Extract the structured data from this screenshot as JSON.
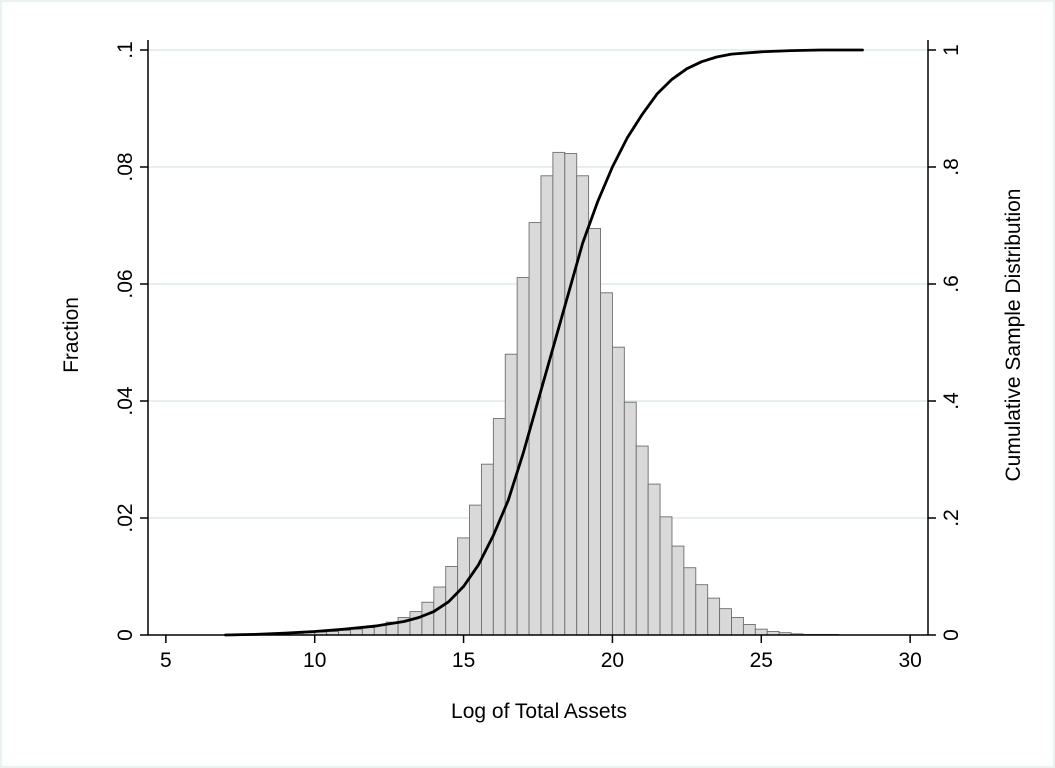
{
  "chart_data": {
    "type": "bar",
    "title": "",
    "xlabel": "Log of Total Assets",
    "ylabel": "Fraction",
    "y2label": "Cumulative Sample Distribution",
    "xlim": [
      4.4,
      30.6
    ],
    "ylim": [
      0,
      0.1
    ],
    "y2lim": [
      0,
      1
    ],
    "x_ticks": [
      5,
      10,
      15,
      20,
      25,
      30
    ],
    "y_ticks": [
      0,
      0.02,
      0.04,
      0.06,
      0.08,
      0.1
    ],
    "y_tick_labels": [
      "0",
      ".02",
      ".04",
      ".06",
      ".08",
      ".1"
    ],
    "y2_ticks": [
      0,
      0.2,
      0.4,
      0.6,
      0.8,
      1
    ],
    "y2_tick_labels": [
      "0",
      ".2",
      ".4",
      ".6",
      ".8",
      "1"
    ],
    "grid": true,
    "colors": {
      "bar_fill": "#d9d9d9",
      "bar_stroke": "#6e6e6e",
      "line": "#000000",
      "grid": "#dfe9ec",
      "frame": "#eaf2f3"
    },
    "histogram": {
      "bin_width": 0.4,
      "bin_starts": [
        7.6,
        8.0,
        8.4,
        8.8,
        9.2,
        9.6,
        10.0,
        10.4,
        10.8,
        11.2,
        11.6,
        12.0,
        12.4,
        12.8,
        13.2,
        13.6,
        14.0,
        14.4,
        14.8,
        15.2,
        15.6,
        16.0,
        16.4,
        16.8,
        17.2,
        17.6,
        18.0,
        18.4,
        18.8,
        19.2,
        19.6,
        20.0,
        20.4,
        20.8,
        21.2,
        21.6,
        22.0,
        22.4,
        22.8,
        23.2,
        23.6,
        24.0,
        24.4,
        24.8,
        25.2,
        25.6,
        26.0,
        26.4,
        26.8,
        27.2
      ],
      "values": [
        0.0001,
        0.0001,
        0.0001,
        0.0002,
        0.0003,
        0.0004,
        0.0005,
        0.0006,
        0.0008,
        0.001,
        0.0013,
        0.0017,
        0.0022,
        0.003,
        0.004,
        0.0056,
        0.0082,
        0.0117,
        0.0166,
        0.0222,
        0.0292,
        0.037,
        0.048,
        0.0611,
        0.0705,
        0.0785,
        0.0825,
        0.0823,
        0.0785,
        0.0695,
        0.0585,
        0.0492,
        0.0398,
        0.0323,
        0.0258,
        0.0202,
        0.0152,
        0.0115,
        0.0086,
        0.0063,
        0.0045,
        0.003,
        0.0018,
        0.001,
        0.0006,
        0.0004,
        0.0002,
        0.0001,
        0.0001,
        0.0001
      ]
    },
    "series": [
      {
        "type": "line",
        "axis": "right",
        "x": [
          7,
          8,
          9,
          10,
          11,
          12,
          13,
          13.5,
          14,
          14.5,
          15,
          15.5,
          16,
          16.5,
          17,
          17.5,
          18,
          18.5,
          19,
          19.5,
          20,
          20.5,
          21,
          21.5,
          22,
          22.5,
          23,
          23.5,
          24,
          25,
          26,
          27,
          28.4
        ],
        "y": [
          0.0,
          0.001,
          0.003,
          0.006,
          0.01,
          0.015,
          0.023,
          0.03,
          0.04,
          0.057,
          0.083,
          0.12,
          0.17,
          0.23,
          0.31,
          0.4,
          0.49,
          0.58,
          0.67,
          0.74,
          0.8,
          0.85,
          0.89,
          0.925,
          0.95,
          0.968,
          0.98,
          0.988,
          0.993,
          0.997,
          0.999,
          1.0,
          1.0
        ]
      }
    ]
  }
}
